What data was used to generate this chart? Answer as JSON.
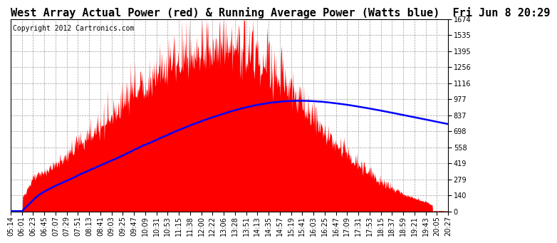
{
  "title": "West Array Actual Power (red) & Running Average Power (Watts blue)  Fri Jun 8 20:29",
  "copyright": "Copyright 2012 Cartronics.com",
  "ylabel_values": [
    0.0,
    139.5,
    279.1,
    418.6,
    558.1,
    697.6,
    837.2,
    976.7,
    1116.2,
    1255.8,
    1395.3,
    1534.8,
    1674.3
  ],
  "ymax": 1674.3,
  "ymin": 0.0,
  "x_labels": [
    "05:14",
    "06:01",
    "06:23",
    "06:45",
    "07:07",
    "07:29",
    "07:51",
    "08:13",
    "08:41",
    "09:03",
    "09:25",
    "09:47",
    "10:09",
    "10:31",
    "10:53",
    "11:15",
    "11:38",
    "12:00",
    "12:22",
    "13:06",
    "13:28",
    "13:51",
    "14:13",
    "14:35",
    "14:57",
    "15:19",
    "15:41",
    "16:03",
    "16:25",
    "16:47",
    "17:09",
    "17:31",
    "17:53",
    "18:15",
    "18:37",
    "18:59",
    "19:21",
    "19:43",
    "20:05",
    "20:27"
  ],
  "background_color": "#ffffff",
  "fill_color": "#ff0000",
  "line_color": "#0000ff",
  "title_fontsize": 11,
  "copyright_fontsize": 7,
  "tick_fontsize": 7
}
